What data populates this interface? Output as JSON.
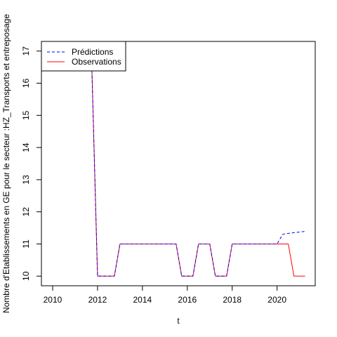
{
  "chart_data": {
    "type": "line",
    "xlabel": "t",
    "ylabel": "Nombre d'Etablissements en GE pour le secteur :HZ_Transports et entreposage",
    "xlim": [
      2009.5,
      2021.7
    ],
    "ylim": [
      9.7,
      17.3
    ],
    "x_ticks": [
      2010,
      2012,
      2014,
      2016,
      2018,
      2020
    ],
    "y_ticks": [
      10,
      11,
      12,
      13,
      14,
      15,
      16,
      17
    ],
    "x_tick_labels": [
      "2010",
      "2012",
      "2014",
      "2016",
      "2018",
      "2020"
    ],
    "y_tick_labels": [
      "10",
      "11",
      "12",
      "13",
      "14",
      "15",
      "16",
      "17"
    ],
    "legend_position": "top-left",
    "grid": false,
    "series": [
      {
        "name": "Prédictions",
        "color": "#0000ff",
        "dash": "dashed",
        "x": [
          2011.5,
          2011.75,
          2012.0,
          2012.25,
          2012.5,
          2012.75,
          2013.0,
          2013.25,
          2013.5,
          2013.75,
          2014.0,
          2014.25,
          2014.5,
          2014.75,
          2015.0,
          2015.25,
          2015.5,
          2015.75,
          2016.0,
          2016.25,
          2016.5,
          2016.75,
          2017.0,
          2017.25,
          2017.5,
          2017.75,
          2018.0,
          2018.25,
          2018.5,
          2018.75,
          2019.0,
          2019.25,
          2019.5,
          2019.75,
          2020.0,
          2020.25,
          2020.5,
          2020.75,
          2021.0,
          2021.25
        ],
        "values": [
          17.6,
          16.4,
          10,
          10,
          10,
          10,
          11,
          11,
          11,
          11,
          11,
          11,
          11,
          11,
          11,
          11,
          11,
          10,
          10,
          10,
          11,
          11,
          11,
          10,
          10,
          10,
          11,
          11,
          11,
          11,
          11,
          11,
          11,
          11,
          11,
          11.3,
          11.33,
          11.35,
          11.37,
          11.39
        ]
      },
      {
        "name": "Observations",
        "color": "#ff0000",
        "dash": "solid",
        "x": [
          2011.5,
          2011.75,
          2012.0,
          2012.25,
          2012.5,
          2012.75,
          2013.0,
          2013.25,
          2013.5,
          2013.75,
          2014.0,
          2014.25,
          2014.5,
          2014.75,
          2015.0,
          2015.25,
          2015.5,
          2015.75,
          2016.0,
          2016.25,
          2016.5,
          2016.75,
          2017.0,
          2017.25,
          2017.5,
          2017.75,
          2018.0,
          2018.25,
          2018.5,
          2018.75,
          2019.0,
          2019.25,
          2019.5,
          2019.75,
          2020.0,
          2020.25,
          2020.5,
          2020.75,
          2021.0,
          2021.25
        ],
        "values": [
          17.6,
          16.4,
          10,
          10,
          10,
          10,
          11,
          11,
          11,
          11,
          11,
          11,
          11,
          11,
          11,
          11,
          11,
          10,
          10,
          10,
          11,
          11,
          11,
          10,
          10,
          10,
          11,
          11,
          11,
          11,
          11,
          11,
          11,
          11,
          11,
          11,
          11,
          10,
          10,
          10
        ]
      }
    ]
  }
}
